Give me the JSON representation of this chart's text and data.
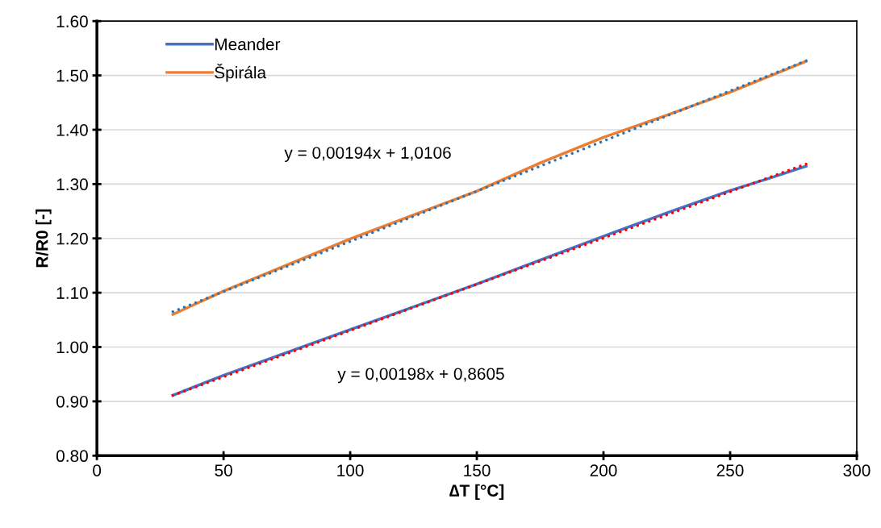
{
  "chart_data": {
    "type": "line",
    "xlabel": "∆T [°C]",
    "ylabel": "R/R0 [-]",
    "xlim": [
      0,
      300
    ],
    "xticks": [
      0,
      50,
      100,
      150,
      200,
      250,
      300
    ],
    "ylim": [
      0.8,
      1.6
    ],
    "yticks": [
      {
        "value": 0.8,
        "label": "0.80"
      },
      {
        "value": 0.9,
        "label": "0.90"
      },
      {
        "value": 1.0,
        "label": "1.00"
      },
      {
        "value": 1.1,
        "label": "1.10"
      },
      {
        "value": 1.2,
        "label": "1.20"
      },
      {
        "value": 1.3,
        "label": "1.30"
      },
      {
        "value": 1.4,
        "label": "1.40"
      },
      {
        "value": 1.5,
        "label": "1.50"
      },
      {
        "value": 1.6,
        "label": "1.60"
      }
    ],
    "grid": "y",
    "legend": "top left",
    "series": [
      {
        "name": "Meander",
        "color": "#4472c4",
        "x": [
          30,
          50,
          100,
          150,
          175,
          200,
          225,
          250,
          265,
          280
        ],
        "values": [
          0.911,
          0.948,
          1.032,
          1.116,
          1.16,
          1.204,
          1.247,
          1.288,
          1.31,
          1.333
        ]
      },
      {
        "name": "Špirála",
        "color": "#ed7d31",
        "x": [
          30,
          50,
          100,
          150,
          175,
          200,
          225,
          250,
          280
        ],
        "values": [
          1.06,
          1.103,
          1.199,
          1.287,
          1.339,
          1.386,
          1.427,
          1.469,
          1.526
        ]
      },
      {
        "color": "#2e75b6",
        "line_style": "dotted",
        "x": [
          30,
          280
        ],
        "values": [
          1.065,
          1.527
        ]
      },
      {
        "color": "#ff0000",
        "line_style": "dotted",
        "x": [
          30,
          280
        ],
        "values": [
          0.911,
          1.337
        ]
      }
    ],
    "annotations": [
      "y = 0,00194x + 1,0106",
      "y = 0,00198x + 0,8605"
    ]
  }
}
